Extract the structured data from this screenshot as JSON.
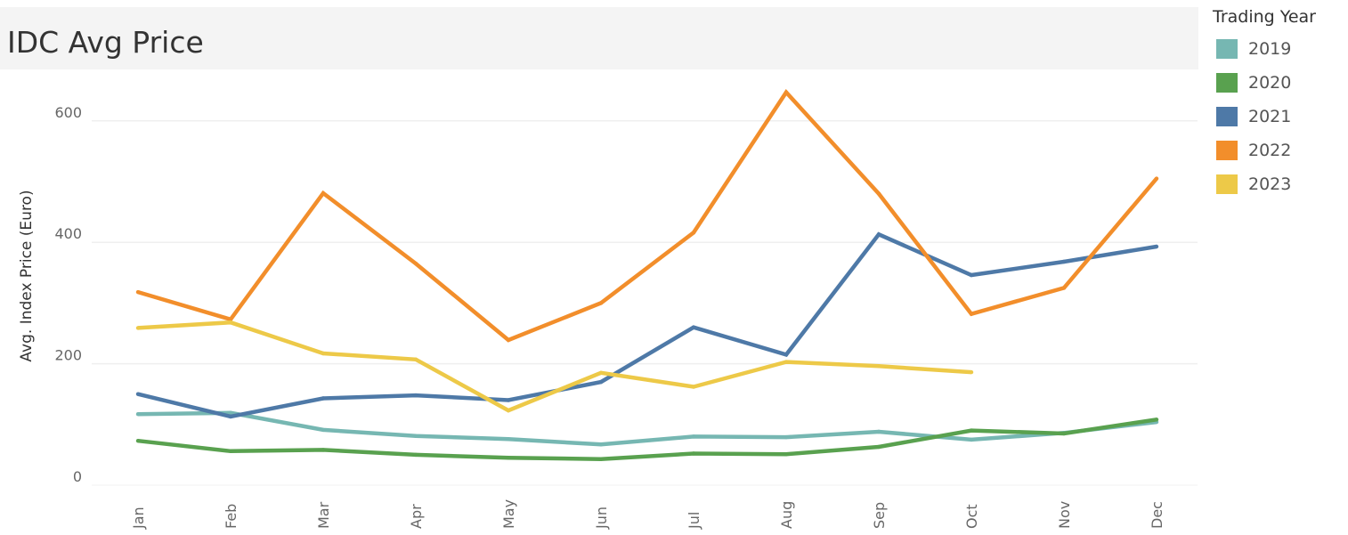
{
  "chart_data": {
    "type": "line",
    "title": "IDC Avg Price",
    "ylabel": "Avg. Index Price (Euro)",
    "xlabel": "",
    "categories": [
      "Jan",
      "Feb",
      "Mar",
      "Apr",
      "May",
      "Jun",
      "Jul",
      "Aug",
      "Sep",
      "Oct",
      "Nov",
      "Dec"
    ],
    "ylim": [
      0,
      680
    ],
    "yticks": [
      0,
      200,
      400,
      600
    ],
    "grid": true,
    "legend": {
      "title": "Trading Year",
      "position": "right"
    },
    "series": [
      {
        "name": "2019",
        "color": "#76b7b2",
        "values": [
          117,
          119,
          91,
          81,
          76,
          67,
          80,
          79,
          88,
          75,
          86,
          104
        ]
      },
      {
        "name": "2020",
        "color": "#59a14f",
        "values": [
          73,
          56,
          58,
          50,
          45,
          43,
          52,
          51,
          63,
          90,
          85,
          108
        ]
      },
      {
        "name": "2021",
        "color": "#4e79a7",
        "values": [
          150,
          113,
          143,
          148,
          140,
          170,
          260,
          215,
          413,
          346,
          368,
          393
        ]
      },
      {
        "name": "2022",
        "color": "#f28e2b",
        "values": [
          318,
          273,
          481,
          365,
          239,
          300,
          416,
          647,
          480,
          282,
          325,
          505
        ]
      },
      {
        "name": "2023",
        "color": "#edc948",
        "values": [
          259,
          268,
          217,
          207,
          123,
          185,
          162,
          203,
          196,
          186,
          null,
          null
        ]
      }
    ]
  }
}
